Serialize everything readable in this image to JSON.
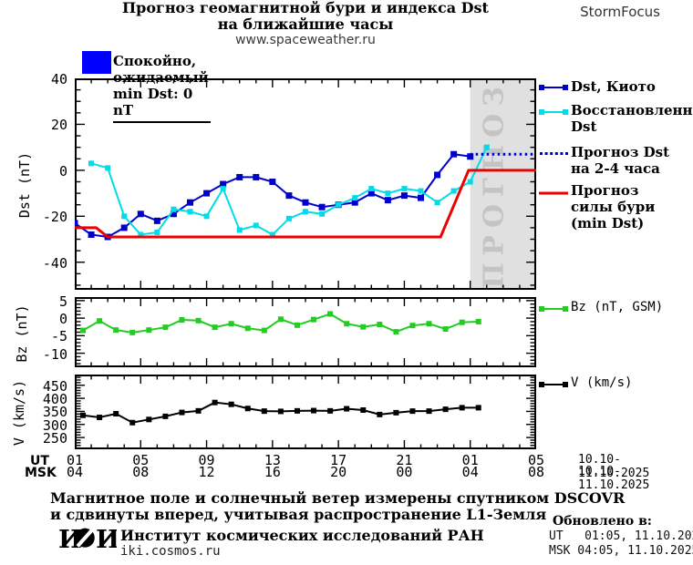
{
  "header": {
    "title_line1": "Прогноз геомагнитной бури и индекса Dst",
    "title_line2": "на ближайшие часы",
    "site": "www.spaceweather.ru",
    "brand": "StormFocus"
  },
  "status": {
    "text": "Спокойно, ожидаемый min Dst: 0 nT",
    "box_color": "#0000ff"
  },
  "legend": {
    "kyoto": {
      "label": "Dst, Киото"
    },
    "restored": {
      "line1": "Восстановленный",
      "line2": "Dst"
    },
    "forecast_dst": {
      "line1": "Прогноз Dst",
      "line2": "на 2-4 часа"
    },
    "storm": {
      "line1": "Прогноз",
      "line2": "силы бури",
      "line3": "(min Dst)"
    },
    "bz": {
      "label": "Bz (nT, GSM)"
    },
    "v": {
      "label": "V (km/s)"
    }
  },
  "chart_data": {
    "type": "line",
    "title": "Прогноз геомагнитной бури и индекса Dst на ближайшие часы",
    "x_axis": {
      "ut_label": "UT",
      "msk_label": "MSK",
      "tick_hours": [
        1,
        5,
        9,
        13,
        17,
        21,
        25,
        29
      ],
      "ut_ticks": [
        "01",
        "05",
        "09",
        "13",
        "17",
        "21",
        "01",
        "05"
      ],
      "msk_ticks": [
        "04",
        "08",
        "12",
        "16",
        "20",
        "00",
        "04",
        "08"
      ],
      "date_range_ut": "10.10-11.10.2025",
      "date_range_msk": "10.10-11.10.2025",
      "xlim": [
        1,
        29
      ],
      "minor_step": 1
    },
    "forecast_band": {
      "start_hour": 25,
      "end_hour": 29,
      "label": "ПРОГНОЗ",
      "fill": "#e0e0e0",
      "text_color": "#c4c4c4"
    },
    "panels": [
      {
        "id": "dst",
        "ylabel": "Dst (nT)",
        "ylim": [
          -52,
          40
        ],
        "yticks": [
          40,
          20,
          0,
          -20,
          -40
        ],
        "yminor": 5,
        "band": true,
        "series": [
          {
            "id": "kyoto",
            "name": "Dst, Киото",
            "color": "#0000cd",
            "style": "line-markers",
            "width": 2,
            "msize": 7,
            "x": [
              1,
              2,
              3,
              4,
              5,
              6,
              7,
              8,
              9,
              10,
              11,
              12,
              13,
              14,
              15,
              16,
              17,
              18,
              19,
              20,
              21,
              22,
              23,
              24,
              25
            ],
            "y": [
              -23,
              -28,
              -29,
              -25,
              -19,
              -22,
              -19,
              -14,
              -10,
              -6,
              -3,
              -3,
              -5,
              -11,
              -14,
              -16,
              -15,
              -14,
              -10,
              -13,
              -11,
              -12,
              -2,
              7,
              6
            ]
          },
          {
            "id": "restored",
            "name": "Восстановленный Dst",
            "color": "#00dce8",
            "style": "line-markers",
            "width": 2,
            "msize": 6,
            "x": [
              2,
              3,
              4,
              5,
              6,
              7,
              8,
              9,
              10,
              11,
              12,
              13,
              14,
              15,
              16,
              17,
              18,
              19,
              20,
              21,
              22,
              23,
              24,
              25,
              26
            ],
            "y": [
              3,
              1,
              -20,
              -28,
              -27,
              -17,
              -18,
              -20,
              -8,
              -26,
              -24,
              -28,
              -21,
              -18,
              -19,
              -15,
              -12,
              -8,
              -10,
              -8,
              -9,
              -14,
              -9,
              -5,
              10
            ]
          },
          {
            "id": "dst-forecast",
            "name": "Прогноз Dst на 2-4 часа",
            "color": "#0000cd",
            "style": "dotted",
            "width": 3,
            "x": [
              25,
              29
            ],
            "y": [
              7,
              7
            ]
          },
          {
            "id": "storm-forecast",
            "name": "Прогноз силы бури (min Dst)",
            "color": "#ee0000",
            "style": "line",
            "width": 3,
            "x": [
              1,
              2.3,
              3,
              23.2,
              24.9,
              29
            ],
            "y": [
              -25,
              -25,
              -29,
              -29,
              0,
              0
            ]
          }
        ]
      },
      {
        "id": "bz",
        "ylabel": "Bz (nT)",
        "ylim": [
          -14,
          6
        ],
        "yticks": [
          5,
          0,
          -5,
          -10
        ],
        "yminor": 1,
        "band": false,
        "series": [
          {
            "id": "bz",
            "name": "Bz (nT, GSM)",
            "color": "#22cc22",
            "style": "line-markers",
            "width": 2,
            "msize": 6,
            "x": [
              1.5,
              2.5,
              3.5,
              4.5,
              5.5,
              6.5,
              7.5,
              8.5,
              9.5,
              10.5,
              11.5,
              12.5,
              13.5,
              14.5,
              15.5,
              16.5,
              17.5,
              18.5,
              19.5,
              20.5,
              21.5,
              22.5,
              23.5,
              24.5,
              25.5
            ],
            "y": [
              -3.5,
              -0.8,
              -3.4,
              -4.1,
              -3.4,
              -2.6,
              -0.5,
              -0.7,
              -2.6,
              -1.6,
              -2.9,
              -3.5,
              -0.3,
              -2.0,
              -0.4,
              1.2,
              -1.6,
              -2.5,
              -1.8,
              -3.9,
              -2.1,
              -1.6,
              -3.1,
              -1.2,
              -1.0
            ]
          }
        ]
      },
      {
        "id": "v",
        "ylabel": "V (km/s)",
        "ylim": [
          205,
          491
        ],
        "yticks": [
          450,
          400,
          350,
          300,
          250
        ],
        "yminor": 10,
        "band": false,
        "series": [
          {
            "id": "v",
            "name": "V (km/s)",
            "color": "#000000",
            "style": "line-markers",
            "width": 2,
            "msize": 6,
            "x": [
              1.5,
              2.5,
              3.5,
              4.5,
              5.5,
              6.5,
              7.5,
              8.5,
              9.5,
              10.5,
              11.5,
              12.5,
              13.5,
              14.5,
              15.5,
              16.5,
              17.5,
              18.5,
              19.5,
              20.5,
              21.5,
              22.5,
              23.5,
              24.5,
              25.5
            ],
            "y": [
              335,
              327,
              341,
              307,
              319,
              331,
              346,
              352,
              384,
              377,
              361,
              351,
              350,
              352,
              353,
              352,
              360,
              355,
              338,
              345,
              351,
              351,
              358,
              364,
              364
            ]
          }
        ]
      }
    ]
  },
  "footer": {
    "note_line1": "Магнитное поле и солнечный ветер измерены спутником DSCOVR",
    "note_line2": "и сдвинуты вперед, учитывая распространение L1-Земля",
    "institute": "Институт космических исследований РАН",
    "institute_site": "iki.cosmos.ru",
    "logo": {
      "i1": "И",
      "i2": "И"
    },
    "updated": {
      "title": "Обновлено в:",
      "ut": "UT   01:05, 11.10.2025",
      "msk": "MSK 04:05, 11.10.2025"
    }
  }
}
